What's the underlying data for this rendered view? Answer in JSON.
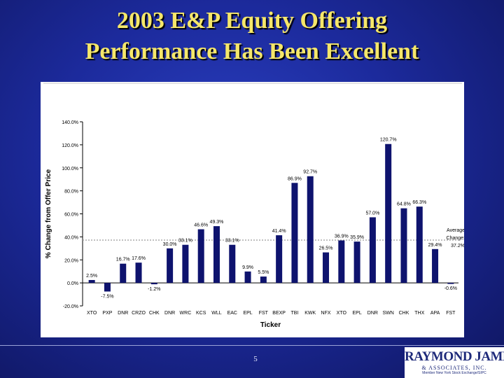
{
  "title": {
    "line1": "2003 E&P Equity Offering",
    "line2": "Performance Has Been Excellent"
  },
  "page_number": "5",
  "logo": {
    "main": "RAYMOND JAMES",
    "sub": "& ASSOCIATES, INC.",
    "tag": "Member New York Stock Exchange/SIPC"
  },
  "colors": {
    "bar": "#0e136e",
    "title": "#f5e76a",
    "average_line": "#9a9a9a"
  },
  "chart_data": {
    "type": "bar",
    "xlabel": "Ticker",
    "ylabel": "% Change from Offer Price",
    "ylim": [
      -20,
      140
    ],
    "yticks": [
      "-20.0%",
      "0.0%",
      "20.0%",
      "40.0%",
      "60.0%",
      "80.0%",
      "100.0%",
      "120.0%",
      "140.0%"
    ],
    "ytick_values": [
      -20,
      0,
      20,
      40,
      60,
      80,
      100,
      120,
      140
    ],
    "categories": [
      "XTO",
      "PXP",
      "DNR",
      "CRZO",
      "CHK",
      "DNR",
      "WRC",
      "KCS",
      "WLL",
      "EAC",
      "EPL",
      "FST",
      "BEXP",
      "TBI",
      "KWK",
      "NFX",
      "XTO",
      "EPL",
      "DNR",
      "SWN",
      "CHK",
      "THX",
      "APA",
      "FST"
    ],
    "values": [
      2.5,
      -7.5,
      16.7,
      17.6,
      -1.2,
      30.0,
      33.1,
      46.6,
      49.3,
      33.1,
      9.9,
      5.5,
      41.4,
      86.9,
      92.7,
      26.5,
      36.9,
      35.9,
      57.0,
      120.7,
      64.8,
      66.3,
      29.4,
      -0.6
    ],
    "labels": [
      "2.5%",
      "-7.5%",
      "16.7%",
      "17.6%",
      "-1.2%",
      "30.0%",
      "33.1%",
      "46.6%",
      "49.3%",
      "33.1%",
      "9.9%",
      "5.5%",
      "41.4%",
      "86.9%",
      "92.7%",
      "26.5%",
      "36.9%",
      "35.9%",
      "57.0%",
      "120.7%",
      "64.8%",
      "66.3%",
      "29.4%",
      "-0.6%"
    ],
    "average": {
      "value": 37.2,
      "label_lines": [
        "Average",
        "Change:",
        "37.2%"
      ]
    },
    "grid": false,
    "legend": "none"
  }
}
